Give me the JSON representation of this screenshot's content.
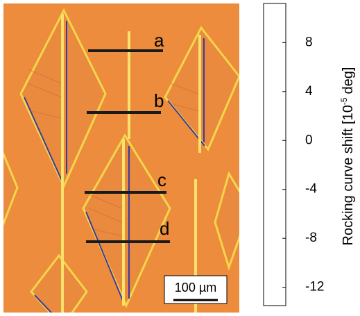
{
  "image": {
    "line_labels": [
      "a",
      "b",
      "c",
      "d"
    ],
    "scale_bar": "100 µm"
  },
  "colorbar": {
    "lim": [
      -13.5,
      11.2
    ],
    "ticks": [
      8,
      4,
      0,
      -4,
      -8,
      -12
    ],
    "label_start": "Rocking curve shift [10",
    "exponent": "-5",
    "label_end": "deg]",
    "colormap": [
      {
        "value": 11.2,
        "color": "#ffffff"
      },
      {
        "value": 9,
        "color": "#fdf6b0"
      },
      {
        "value": 6,
        "color": "#f5e21a"
      },
      {
        "value": 2,
        "color": "#f1a52a"
      },
      {
        "value": 0,
        "color": "#ef8a2a"
      },
      {
        "value": -2.5,
        "color": "#e8452a"
      },
      {
        "value": -4,
        "color": "#d9201e"
      },
      {
        "value": -5.5,
        "color": "#7a1420"
      },
      {
        "value": -7,
        "color": "#5a2a80"
      },
      {
        "value": -9,
        "color": "#2a3aa8"
      },
      {
        "value": -11,
        "color": "#142060"
      },
      {
        "value": -13.5,
        "color": "#000000"
      }
    ]
  }
}
